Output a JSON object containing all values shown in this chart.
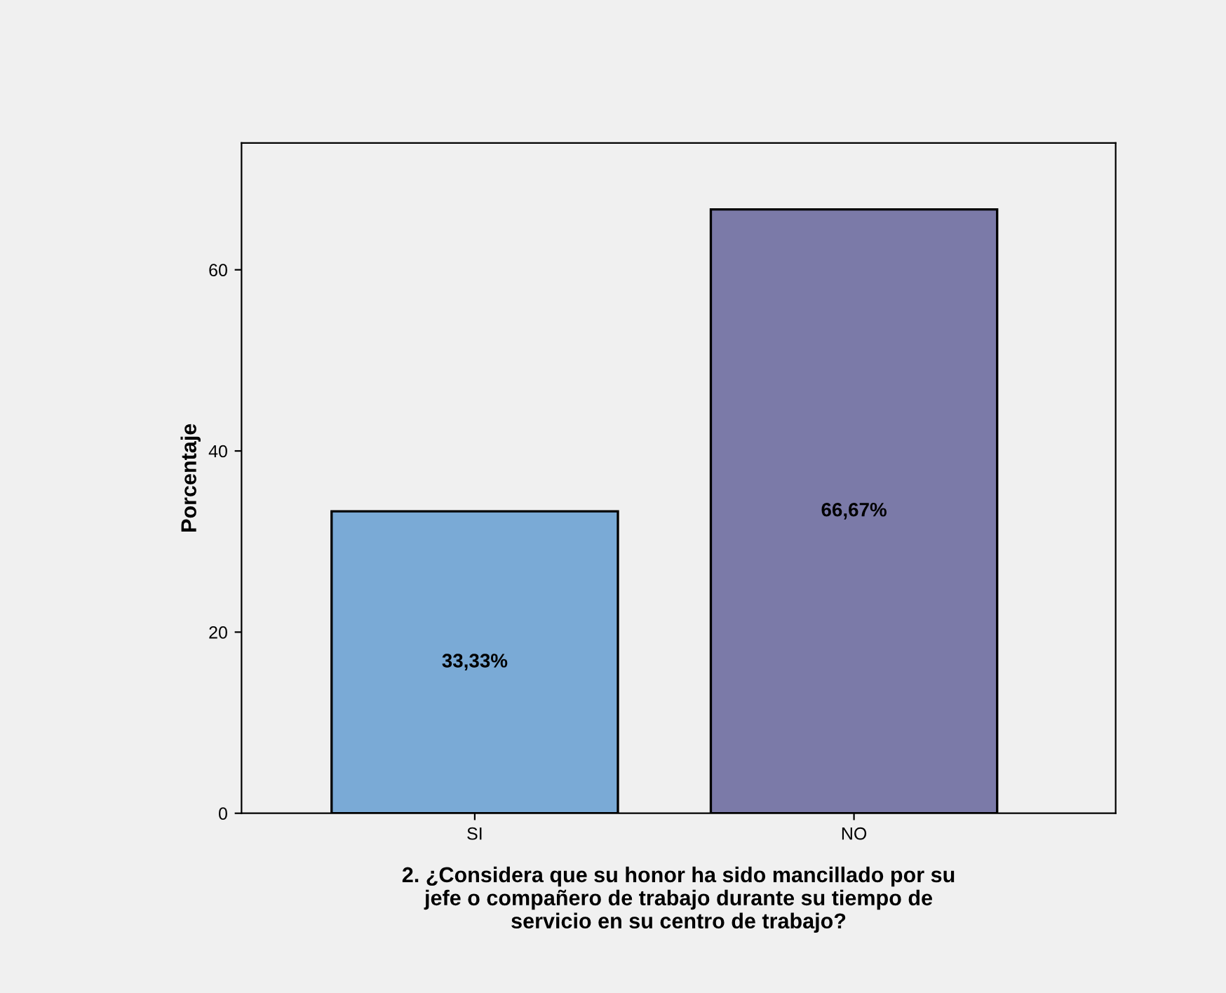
{
  "chart_data": {
    "type": "bar",
    "categories": [
      "SI",
      "NO"
    ],
    "values": [
      33.33,
      66.67
    ],
    "colors": [
      "#7aaad6",
      "#7b7aa8"
    ],
    "value_labels": [
      "33,33%",
      "66,67%"
    ],
    "xlabel": "2. ¿Considera que su honor ha sido mancillado por su\njefe o compañero de trabajo durante su tiempo de\nservicio en su centro de trabajo?",
    "ylabel": "Porcentaje",
    "ylim": [
      0,
      74
    ],
    "yticks": [
      0,
      20,
      40,
      60
    ],
    "grid": false,
    "legend": false
  }
}
